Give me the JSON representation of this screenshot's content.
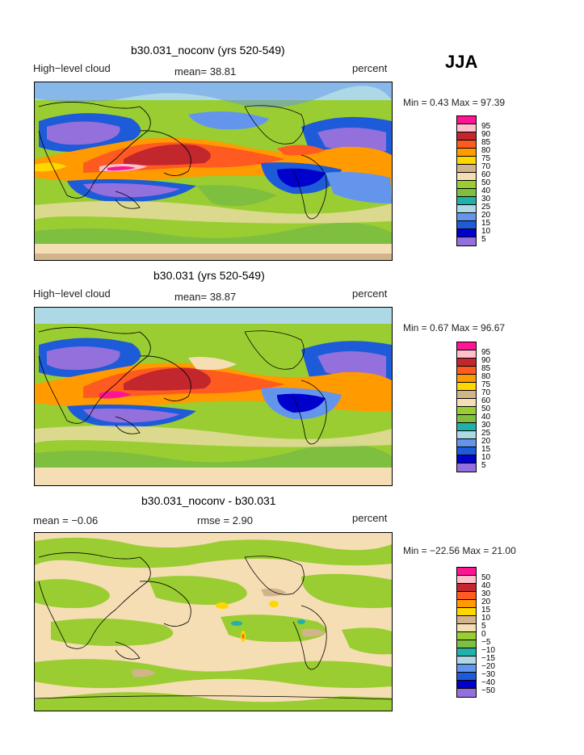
{
  "season": "JJA",
  "panels": [
    {
      "title": "b30.031_noconv (yrs 520-549)",
      "left_label": "High−level cloud",
      "mid_label": "mean=  38.81",
      "right_label": "percent",
      "minmax": "Min =    0.43 Max =  97.39",
      "colorbar_labels": [
        "95",
        "90",
        "85",
        "80",
        "75",
        "70",
        "60",
        "50",
        "40",
        "30",
        "25",
        "20",
        "15",
        "10",
        "5"
      ]
    },
    {
      "title": "b30.031 (yrs 520-549)",
      "left_label": "High−level cloud",
      "mid_label": "mean=  38.87",
      "right_label": "percent",
      "minmax": "Min =    0.67 Max =  96.67",
      "colorbar_labels": [
        "95",
        "90",
        "85",
        "80",
        "75",
        "70",
        "60",
        "50",
        "40",
        "30",
        "25",
        "20",
        "15",
        "10",
        "5"
      ]
    },
    {
      "title": "b30.031_noconv - b30.031",
      "left_label": "mean =   −0.06",
      "mid_label": "rmse =    2.90",
      "right_label": "percent",
      "minmax": "Min = −22.56 Max =  21.00",
      "colorbar_labels": [
        "50",
        "40",
        "30",
        "20",
        "15",
        "10",
        "5",
        "0",
        "−5",
        "−10",
        "−15",
        "−20",
        "−30",
        "−40",
        "−50"
      ]
    }
  ],
  "colors": {
    "scale": [
      "#ff1493",
      "#ffc0cb",
      "#c1272d",
      "#ff5a1f",
      "#ff9a00",
      "#ffd700",
      "#d2b48c",
      "#f5deb3",
      "#9acd32",
      "#7fbf3f",
      "#20b2aa",
      "#add8e6",
      "#6495ed",
      "#1e5bd8",
      "#0000cd",
      "#9370db"
    ],
    "ocean_green": "#9acd32"
  },
  "chart_data": [
    {
      "type": "heatmap",
      "title": "b30.031_noconv (yrs 520-549)",
      "variable": "High-level cloud",
      "units": "percent",
      "mean": 38.81,
      "min": 0.43,
      "max": 97.39,
      "levels": [
        5,
        10,
        15,
        20,
        25,
        30,
        40,
        50,
        60,
        70,
        75,
        80,
        85,
        90,
        95
      ]
    },
    {
      "type": "heatmap",
      "title": "b30.031 (yrs 520-549)",
      "variable": "High-level cloud",
      "units": "percent",
      "mean": 38.87,
      "min": 0.67,
      "max": 96.67,
      "levels": [
        5,
        10,
        15,
        20,
        25,
        30,
        40,
        50,
        60,
        70,
        75,
        80,
        85,
        90,
        95
      ]
    },
    {
      "type": "heatmap",
      "title": "b30.031_noconv - b30.031",
      "units": "percent",
      "mean": -0.06,
      "rmse": 2.9,
      "min": -22.56,
      "max": 21.0,
      "levels": [
        -50,
        -40,
        -30,
        -20,
        -15,
        -10,
        -5,
        0,
        5,
        10,
        15,
        20,
        30,
        40,
        50
      ]
    }
  ]
}
